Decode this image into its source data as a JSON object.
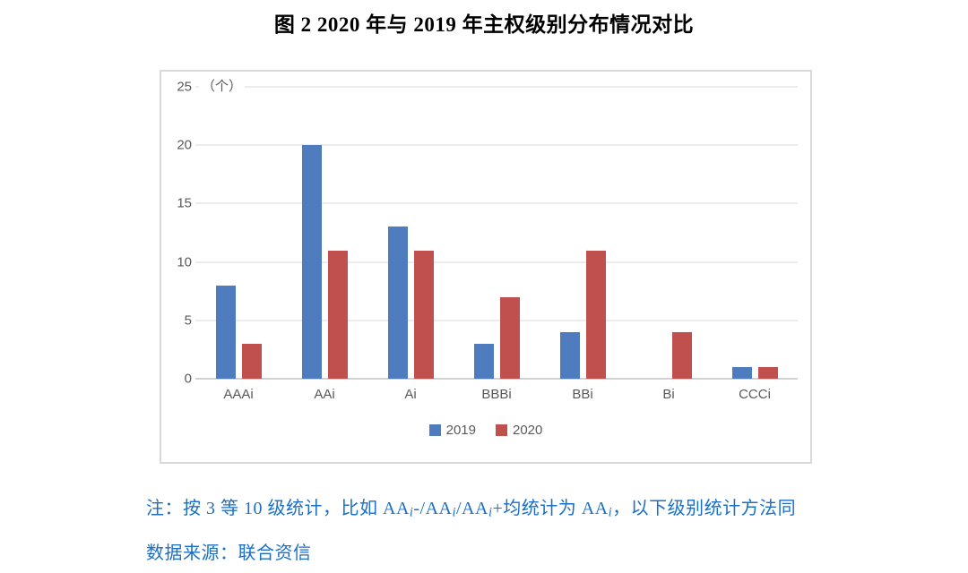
{
  "title": "图 2 2020 年与 2019 年主权级别分布情况对比",
  "chart_data": {
    "type": "bar",
    "title": "图 2 2020 年与 2019 年主权级别分布情况对比",
    "unit_label": "（个）",
    "categories": [
      "AAAi",
      "AAi",
      "Ai",
      "BBBi",
      "BBi",
      "Bi",
      "CCCi"
    ],
    "series": [
      {
        "name": "2019",
        "color": "#4F7CBE",
        "values": [
          8,
          20,
          13,
          3,
          4,
          0,
          1
        ]
      },
      {
        "name": "2020",
        "color": "#C0504D",
        "values": [
          3,
          11,
          11,
          7,
          11,
          4,
          1
        ]
      }
    ],
    "xlabel": "",
    "ylabel": "（个）",
    "ylim": [
      0,
      25
    ],
    "yticks": [
      0,
      5,
      10,
      15,
      20,
      25
    ],
    "grid": true,
    "legend_position": "bottom-center"
  },
  "notes": {
    "line1_segments": [
      {
        "text": "注：按 3 等 10 级统计，比如 AA"
      },
      {
        "text": "i",
        "sub": true
      },
      {
        "text": "-/AA"
      },
      {
        "text": "i",
        "sub": true
      },
      {
        "text": "/AA"
      },
      {
        "text": "i",
        "sub": true
      },
      {
        "text": "+均统计为 AA"
      },
      {
        "text": "i",
        "sub": true
      },
      {
        "text": "，以下级别统计方法同"
      }
    ],
    "line2": "数据来源：联合资信"
  },
  "colors": {
    "series_2019": "#4F7CBE",
    "series_2020": "#C0504D",
    "axis_text": "#595959",
    "gridline": "#D9D9D9",
    "baseline": "#A6A6A6",
    "chart_border": "#D9D9D9",
    "note_text": "#1B6FC5",
    "title_text": "#000000"
  }
}
